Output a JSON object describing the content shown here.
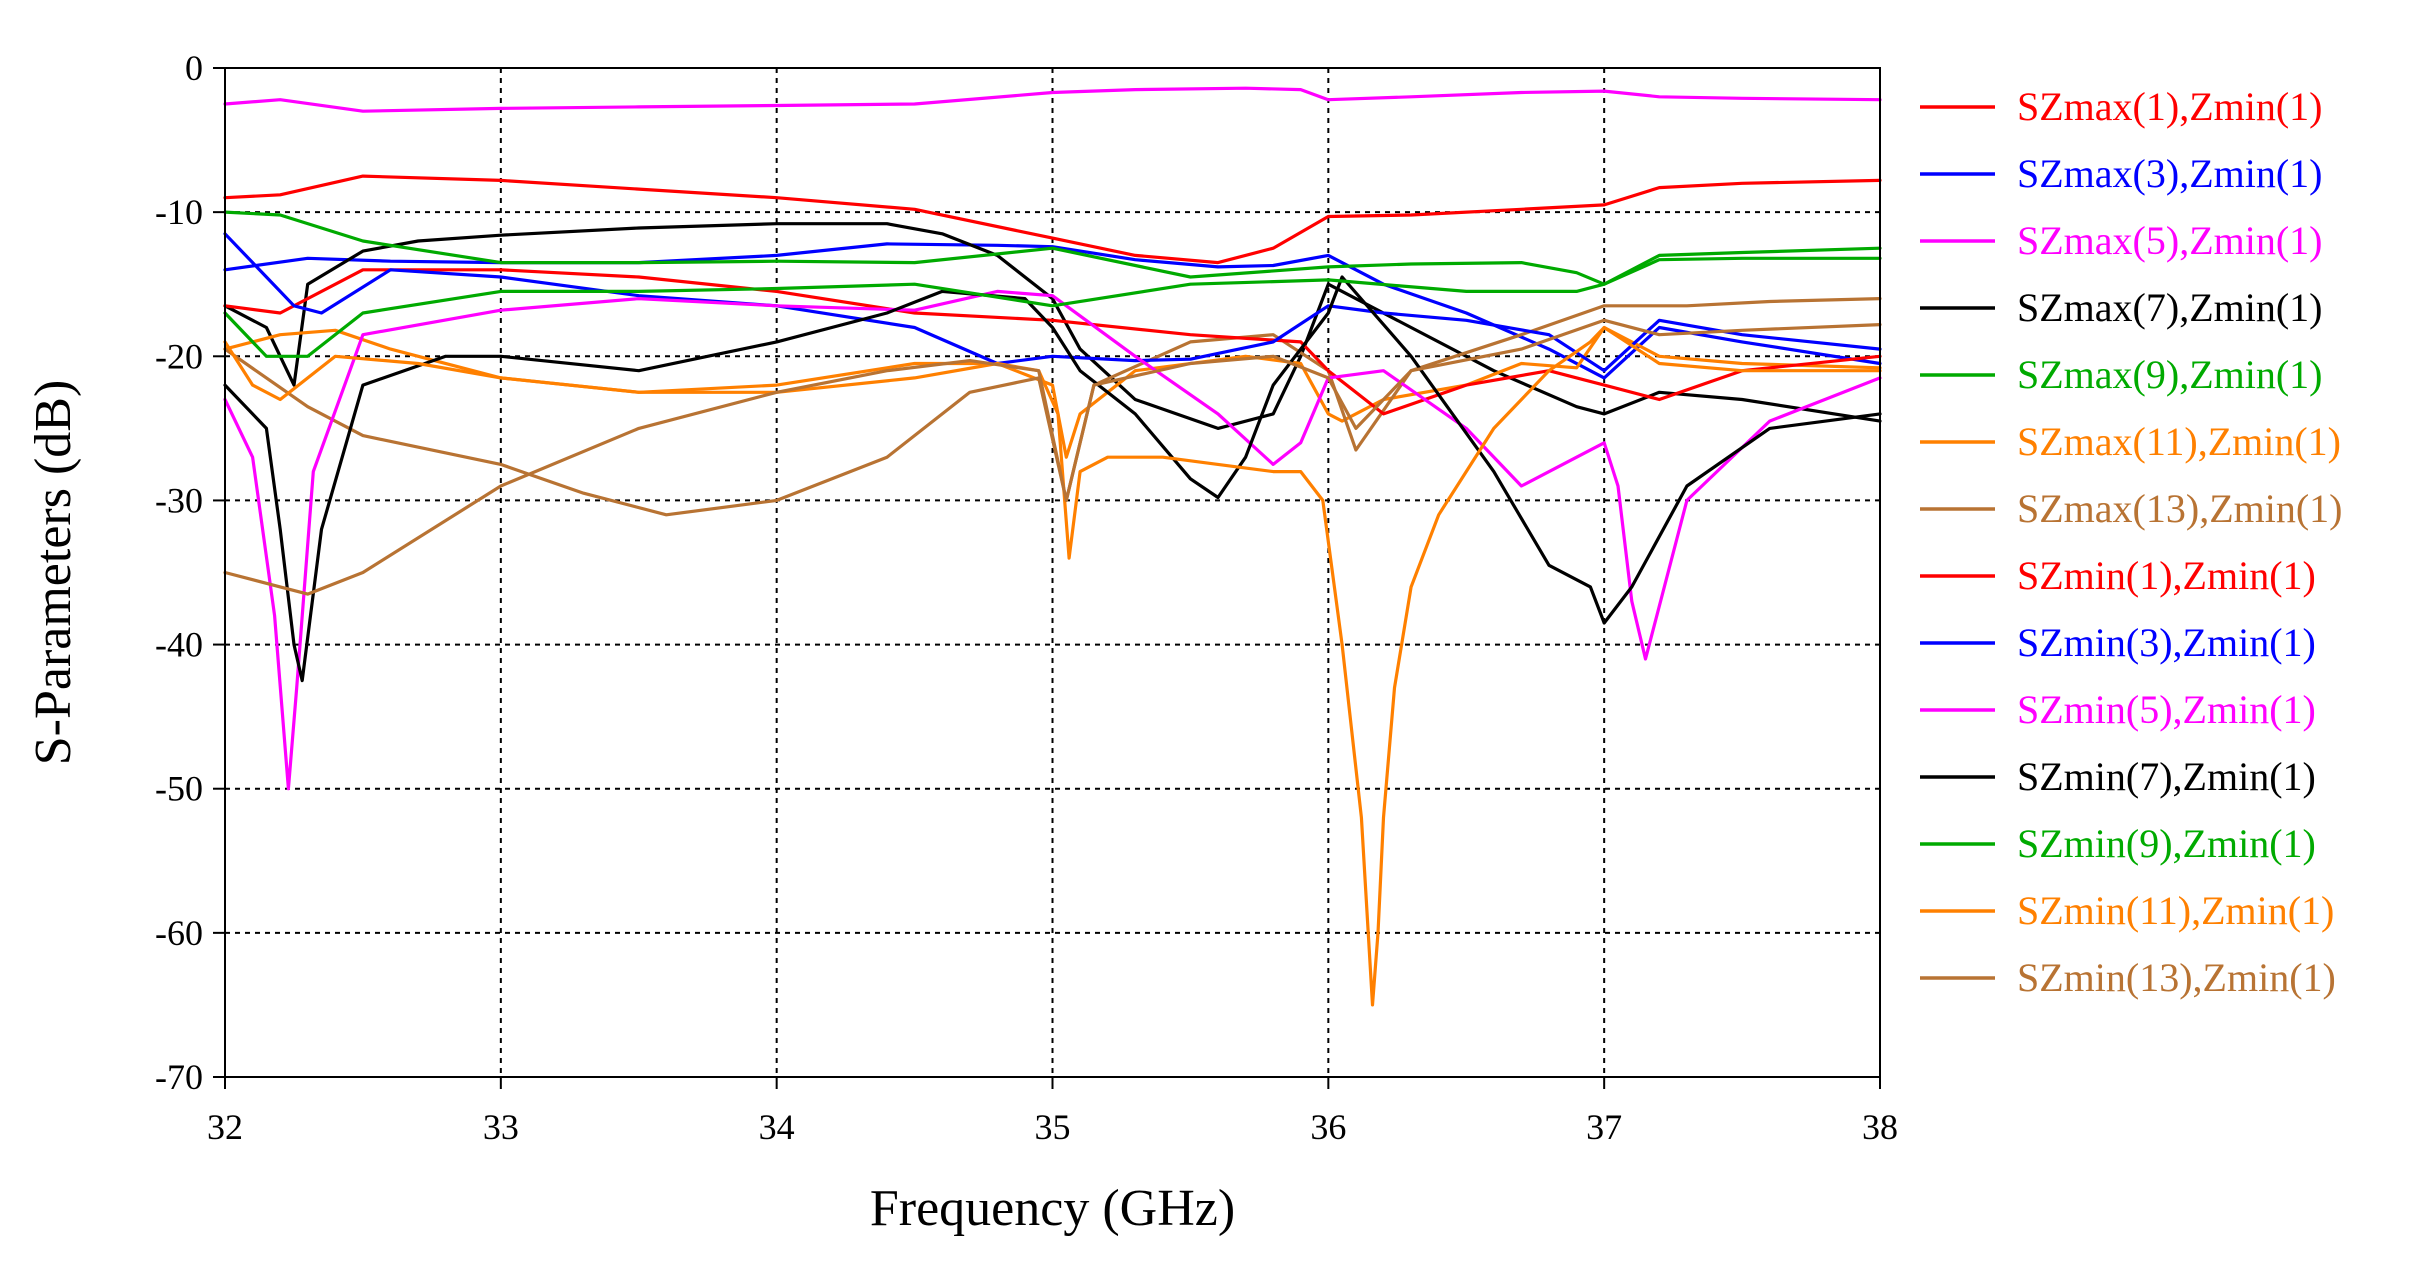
{
  "chart_data": {
    "type": "line",
    "title": "",
    "xlabel": "Frequency (GHz)",
    "ylabel": "S-Parameters (dB)",
    "xlim": [
      32,
      38
    ],
    "ylim": [
      -70,
      0
    ],
    "xticks": [
      32,
      33,
      34,
      35,
      36,
      37,
      38
    ],
    "yticks": [
      0,
      -10,
      -20,
      -30,
      -40,
      -50,
      -60,
      -70
    ],
    "xtick_labels": [
      "32",
      "33",
      "34",
      "35",
      "36",
      "37",
      "38"
    ],
    "ytick_labels": [
      "0",
      "-10",
      "-20",
      "-30",
      "-40",
      "-50",
      "-60",
      "-70"
    ],
    "grid": true,
    "legend_position": "right",
    "series": [
      {
        "name": "SZmax(1),Zmin(1)",
        "color": "#ff0000",
        "x": [
          32,
          32.2,
          32.5,
          33,
          33.5,
          34,
          34.5,
          35,
          35.3,
          35.6,
          35.8,
          36,
          36.3,
          36.7,
          37,
          37.2,
          37.5,
          38
        ],
        "y": [
          -9,
          -8.8,
          -7.5,
          -7.8,
          -8.4,
          -9,
          -9.8,
          -11.8,
          -13,
          -13.5,
          -12.5,
          -10.3,
          -10.2,
          -9.8,
          -9.5,
          -8.3,
          -8,
          -7.8
        ]
      },
      {
        "name": "SZmax(3),Zmin(1)",
        "color": "#0000ff",
        "x": [
          32,
          32.3,
          32.6,
          33,
          33.5,
          34,
          34.4,
          34.8,
          35,
          35.3,
          35.6,
          35.8,
          36,
          36.2,
          36.5,
          36.8,
          37,
          37.2,
          37.5,
          38
        ],
        "y": [
          -14,
          -13.2,
          -13.4,
          -13.5,
          -13.5,
          -13,
          -12.2,
          -12.3,
          -12.4,
          -13.3,
          -13.8,
          -13.7,
          -13,
          -15,
          -17,
          -19.5,
          -21.5,
          -18,
          -19,
          -20.5
        ]
      },
      {
        "name": "SZmax(5),Zmin(1)",
        "color": "#ff00ff",
        "x": [
          32,
          32.2,
          32.5,
          33,
          33.5,
          34,
          34.5,
          35,
          35.3,
          35.7,
          35.9,
          36,
          36.3,
          36.7,
          37,
          37.2,
          37.5,
          38
        ],
        "y": [
          -2.5,
          -2.2,
          -3,
          -2.8,
          -2.7,
          -2.6,
          -2.5,
          -1.7,
          -1.5,
          -1.4,
          -1.5,
          -2.2,
          -2,
          -1.7,
          -1.6,
          -2,
          -2.1,
          -2.2
        ]
      },
      {
        "name": "SZmax(7),Zmin(1)",
        "color": "#000000",
        "x": [
          32,
          32.15,
          32.25,
          32.3,
          32.5,
          32.7,
          33,
          33.5,
          34,
          34.4,
          34.6,
          34.8,
          35,
          35.1,
          35.3,
          35.6,
          35.8,
          35.9,
          36,
          36.3,
          36.6,
          36.9,
          37,
          37.2,
          37.5,
          38
        ],
        "y": [
          -16.5,
          -18,
          -22,
          -15,
          -12.7,
          -12,
          -11.6,
          -11.1,
          -10.8,
          -10.8,
          -11.5,
          -13,
          -16,
          -19.5,
          -23,
          -25,
          -24,
          -20,
          -15,
          -18,
          -21,
          -23.5,
          -24,
          -22.5,
          -23,
          -24.5
        ]
      },
      {
        "name": "SZmax(9),Zmin(1)",
        "color": "#00aa00",
        "x": [
          32,
          32.2,
          32.5,
          33,
          33.5,
          34,
          34.5,
          35,
          35.5,
          36,
          36.3,
          36.7,
          36.9,
          37,
          37.2,
          37.5,
          38
        ],
        "y": [
          -10,
          -10.2,
          -12,
          -13.5,
          -13.5,
          -13.4,
          -13.5,
          -12.5,
          -14.5,
          -13.8,
          -13.6,
          -13.5,
          -14.2,
          -15,
          -13,
          -12.8,
          -12.5
        ]
      },
      {
        "name": "SZmax(11),Zmin(1)",
        "color": "#ff8000",
        "x": [
          32,
          32.2,
          32.4,
          32.6,
          33,
          33.5,
          34,
          34.5,
          34.8,
          35,
          35.05,
          35.1,
          35.3,
          35.7,
          35.9,
          36,
          36.05,
          36.2,
          36.5,
          36.7,
          36.9,
          37,
          37.2,
          37.5,
          38
        ],
        "y": [
          -19.5,
          -18.5,
          -18.2,
          -19.5,
          -21.5,
          -22.5,
          -22,
          -20.5,
          -20.5,
          -22,
          -27,
          -24,
          -21,
          -20,
          -20.5,
          -24,
          -24.5,
          -23,
          -22,
          -20.5,
          -20.8,
          -18,
          -20,
          -20.5,
          -20.8
        ]
      },
      {
        "name": "SZmax(13),Zmin(1)",
        "color": "#b87333",
        "x": [
          32,
          32.3,
          32.5,
          33,
          33.3,
          33.6,
          34,
          34.4,
          34.7,
          34.95,
          35.05,
          35.15,
          35.5,
          35.8,
          36,
          36.1,
          36.3,
          36.7,
          37,
          37.3,
          37.6,
          38
        ],
        "y": [
          -19.5,
          -23.5,
          -25.5,
          -27.5,
          -29.5,
          -31,
          -30,
          -27,
          -22.5,
          -21.5,
          -30,
          -22,
          -19,
          -18.5,
          -21,
          -26.5,
          -21,
          -18.5,
          -16.5,
          -16.5,
          -16.2,
          -16
        ]
      },
      {
        "name": "SZmin(1),Zmin(1)",
        "color": "#ff0000",
        "x": [
          32,
          32.2,
          32.5,
          33,
          33.5,
          34,
          34.5,
          35,
          35.5,
          35.9,
          36,
          36.2,
          36.5,
          36.8,
          37,
          37.2,
          37.5,
          38
        ],
        "y": [
          -16.5,
          -17,
          -14,
          -14,
          -14.5,
          -15.5,
          -17,
          -17.5,
          -18.5,
          -19,
          -21,
          -24,
          -22,
          -21,
          -22,
          -23,
          -21,
          -20
        ]
      },
      {
        "name": "SZmin(3),Zmin(1)",
        "color": "#0000ff",
        "x": [
          32,
          32.15,
          32.25,
          32.35,
          32.6,
          33,
          33.5,
          34,
          34.5,
          34.8,
          35,
          35.3,
          35.5,
          35.8,
          36,
          36.2,
          36.5,
          36.8,
          37,
          37.2,
          37.5,
          38
        ],
        "y": [
          -11.5,
          -14.5,
          -16.5,
          -17,
          -14,
          -14.5,
          -15.8,
          -16.5,
          -18,
          -20.5,
          -20,
          -20.3,
          -20.2,
          -19,
          -16.5,
          -17,
          -17.5,
          -18.5,
          -21,
          -17.5,
          -18.5,
          -19.5
        ]
      },
      {
        "name": "SZmin(5),Zmin(1)",
        "color": "#ff00ff",
        "x": [
          32,
          32.1,
          32.18,
          32.23,
          32.26,
          32.32,
          32.5,
          33,
          33.5,
          34,
          34.5,
          34.8,
          35,
          35.3,
          35.6,
          35.8,
          35.9,
          36,
          36.2,
          36.5,
          36.7,
          36.9,
          37,
          37.05,
          37.1,
          37.15,
          37.3,
          37.6,
          38
        ],
        "y": [
          -23,
          -27,
          -38,
          -50,
          -43,
          -28,
          -18.5,
          -16.8,
          -16,
          -16.5,
          -16.8,
          -15.5,
          -15.8,
          -20,
          -24,
          -27.5,
          -26,
          -21.5,
          -21,
          -25,
          -29,
          -27,
          -26,
          -29,
          -37,
          -41,
          -30,
          -24.5,
          -21.5
        ]
      },
      {
        "name": "SZmin(7),Zmin(1)",
        "color": "#000000",
        "x": [
          32,
          32.15,
          32.2,
          32.25,
          32.28,
          32.35,
          32.5,
          32.8,
          33,
          33.5,
          34,
          34.4,
          34.6,
          34.9,
          35,
          35.1,
          35.3,
          35.5,
          35.6,
          35.7,
          35.8,
          36,
          36.05,
          36.3,
          36.6,
          36.8,
          36.95,
          37,
          37.1,
          37.3,
          37.6,
          38
        ],
        "y": [
          -22,
          -25,
          -32,
          -40,
          -42.5,
          -32,
          -22,
          -20,
          -20,
          -21,
          -19,
          -17,
          -15.5,
          -16,
          -18,
          -21,
          -24,
          -28.5,
          -29.8,
          -27,
          -22,
          -17,
          -14.5,
          -20,
          -28,
          -34.5,
          -36,
          -38.5,
          -36,
          -29,
          -25,
          -24
        ]
      },
      {
        "name": "SZmin(9),Zmin(1)",
        "color": "#00aa00",
        "x": [
          32,
          32.15,
          32.3,
          32.5,
          33,
          33.5,
          34,
          34.5,
          35,
          35.5,
          36,
          36.5,
          36.9,
          37,
          37.2,
          37.5,
          38
        ],
        "y": [
          -17,
          -20,
          -20,
          -17,
          -15.5,
          -15.5,
          -15.3,
          -15,
          -16.5,
          -15,
          -14.7,
          -15.5,
          -15.5,
          -15,
          -13.3,
          -13.2,
          -13.2
        ]
      },
      {
        "name": "SZmin(11),Zmin(1)",
        "color": "#ff8000",
        "x": [
          32,
          32.1,
          32.2,
          32.4,
          32.7,
          33,
          33.5,
          34,
          34.5,
          34.8,
          34.95,
          35.02,
          35.06,
          35.1,
          35.2,
          35.4,
          35.6,
          35.8,
          35.9,
          35.98,
          36.05,
          36.12,
          36.16,
          36.18,
          36.2,
          36.24,
          36.3,
          36.4,
          36.6,
          36.8,
          36.95,
          37,
          37.2,
          37.5,
          38
        ],
        "y": [
          -19,
          -22,
          -23,
          -20,
          -20.5,
          -21.5,
          -22.5,
          -22.5,
          -21.5,
          -20.5,
          -21,
          -24,
          -34,
          -28,
          -27,
          -27,
          -27.5,
          -28,
          -28,
          -30,
          -40,
          -52,
          -65,
          -60,
          -52,
          -43,
          -36,
          -31,
          -25,
          -21,
          -19,
          -18,
          -20.5,
          -21,
          -21
        ]
      },
      {
        "name": "SZmin(13),Zmin(1)",
        "color": "#b87333",
        "x": [
          32,
          32.2,
          32.3,
          32.5,
          33,
          33.5,
          34,
          34.4,
          34.7,
          34.95,
          35.05,
          35.15,
          35.5,
          35.8,
          36,
          36.1,
          36.3,
          36.7,
          37,
          37.2,
          37.5,
          38
        ],
        "y": [
          -35,
          -36,
          -36.5,
          -35,
          -29,
          -25,
          -22.5,
          -21,
          -20.3,
          -21,
          -30,
          -22,
          -20.5,
          -20,
          -21.5,
          -25,
          -21,
          -19.5,
          -17.5,
          -18.5,
          -18.2,
          -17.8
        ]
      }
    ]
  }
}
